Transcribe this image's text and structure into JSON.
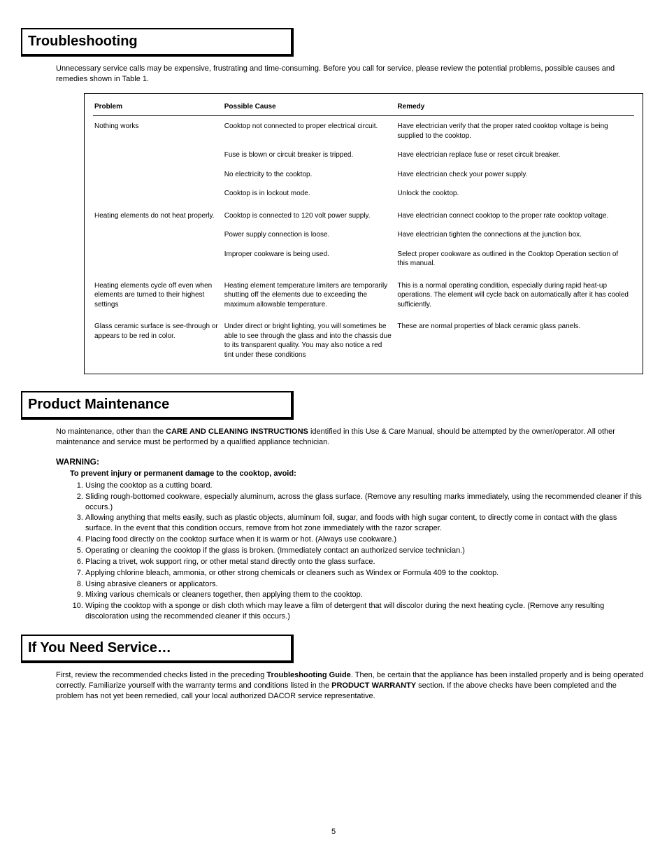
{
  "page_number": "5",
  "sections": {
    "troubleshoot": {
      "title": "Troubleshooting",
      "intro": "Unnecessary service calls may be expensive, frustrating and time-consuming. Before you call for service, please review the potential problems, possible causes and remedies shown in Table 1.",
      "headers": {
        "problem": "Problem",
        "cause": "Possible Cause",
        "remedy": "Remedy"
      },
      "rows": [
        {
          "problem": "Nothing works",
          "cause": "Cooktop not connected to proper electrical circuit.",
          "remedy": "Have electrician verify that the proper rated cooktop voltage is being supplied to the cooktop."
        },
        {
          "problem": "",
          "cause": "Fuse is blown or circuit breaker is tripped.",
          "remedy": "Have electrician replace fuse or reset circuit breaker."
        },
        {
          "problem": "",
          "cause": "No electricity to the cooktop.",
          "remedy": "Have electrician check your power supply."
        },
        {
          "problem": "",
          "cause": "Cooktop is in lockout mode.",
          "remedy": "Unlock the cooktop."
        },
        {
          "problem": "Heating elements do not heat properly.",
          "cause": "Cooktop is connected to 120 volt power supply.",
          "remedy": "Have electrician connect cooktop to the proper rate cooktop voltage."
        },
        {
          "problem": "",
          "cause": "Power supply connection is loose.",
          "remedy": "Have electrician tighten the connections at the junction box."
        },
        {
          "problem": "",
          "cause": "Improper cookware is being used.",
          "remedy": "Select proper cookware as outlined in the Cooktop Operation section of this manual."
        },
        {
          "problem": "Heating elements cycle off even when elements are turned to their highest settings",
          "cause": "Heating element temperature limiters are temporarily shutting off the elements due to exceeding the maximum allowable temperature.",
          "remedy": "This is a normal operating condition, especially during rapid heat-up operations. The element will cycle back on automatically after it has cooled sufficiently."
        },
        {
          "problem": "Glass ceramic surface is see-through or appears to be red in color.",
          "cause": "Under direct or bright lighting, you will sometimes be able to see through the glass and into the chassis due to its transparent quality. You may also notice a red tint under these conditions",
          "remedy": "These are normal properties of black ceramic glass panels."
        }
      ]
    },
    "maintenance": {
      "title": "Product Maintenance",
      "intro_pre": "No maintenance, other than the ",
      "intro_bold": "CARE AND CLEANING INSTRUCTIONS",
      "intro_post": " identified in this Use & Care Manual, should be attempted by the owner/operator. All other maintenance and service must be performed by a qualified appliance technician.",
      "warning_head": "WARNING:",
      "warning_sub": "To prevent injury or permanent damage to the cooktop, avoid:",
      "warnings": [
        "Using the cooktop as a cutting board.",
        "Sliding rough-bottomed cookware, especially aluminum, across the glass surface. (Remove any resulting marks immediately, using the recommended cleaner if this occurs.)",
        "Allowing anything that melts easily, such as plastic objects, aluminum foil, sugar, and foods with high sugar content, to directly come in contact with the glass surface.  In the event that this condition occurs, remove from hot zone immediately with the razor scraper.",
        "Placing food directly on the cooktop surface when it is warm or hot. (Always use cookware.)",
        "Operating or cleaning the cooktop if the glass is broken. (Immediately contact an authorized service technician.)",
        "Placing a trivet, wok support ring, or other metal stand directly onto the glass surface.",
        "Applying chlorine bleach, ammonia, or other strong chemicals or cleaners such as Windex or Formula 409 to the cooktop.",
        "Using abrasive cleaners or applicators.",
        "Mixing various chemicals or cleaners together, then applying them to the cooktop.",
        "Wiping the cooktop with a sponge or dish cloth which may leave a film of detergent that will discolor during the next heating cycle. (Remove any resulting discoloration using the recommended cleaner if this occurs.)"
      ]
    },
    "service": {
      "title": "If You Need Service…",
      "p1_a": "First, review the recommended checks listed in the preceding ",
      "p1_b": "Troubleshooting Guide",
      "p1_c": ". Then, be certain that the appliance has been installed properly and is being operated correctly. Familiarize yourself with the warranty terms and conditions listed in the ",
      "p1_d": "PRODUCT WARRANTY",
      "p1_e": " section. If the above checks have been completed and the problem has not yet been remedied, call your local authorized DACOR service representative."
    }
  }
}
